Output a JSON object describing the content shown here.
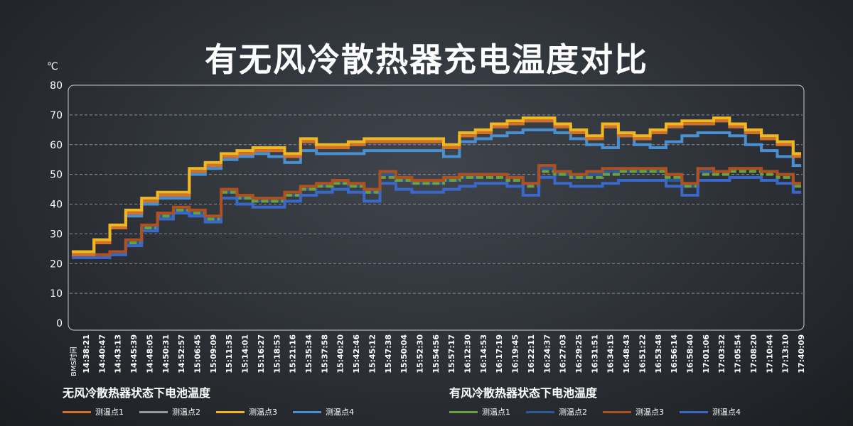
{
  "chart_data": {
    "type": "line",
    "title": "有无风冷散热器充电温度对比",
    "ylabel": "℃",
    "xlabel": "BMS时间",
    "ylim": [
      0,
      80
    ],
    "yticks": [
      0,
      10,
      20,
      30,
      40,
      50,
      60,
      70,
      80
    ],
    "grid": true,
    "step": true,
    "legend_placement": "bottom",
    "categories": [
      "14:38:21",
      "14:40:47",
      "14:43:13",
      "14:45:39",
      "14:48:05",
      "14:50:31",
      "14:52:57",
      "15:06:45",
      "15:09:09",
      "15:11:35",
      "15:14:01",
      "15:16:27",
      "15:18:53",
      "15:21:16",
      "15:35:34",
      "15:37:58",
      "15:40:20",
      "15:42:46",
      "15:45:12",
      "15:47:38",
      "15:50:04",
      "15:52:30",
      "15:54:56",
      "15:57:17",
      "16:12:30",
      "16:14:53",
      "16:17:19",
      "16:19:45",
      "16:22:11",
      "16:24:37",
      "16:27:03",
      "16:29:25",
      "16:31:51",
      "16:34:15",
      "16:48:43",
      "16:51:22",
      "16:53:48",
      "16:56:14",
      "16:58:40",
      "17:01:06",
      "17:03:32",
      "17:05:54",
      "17:08:20",
      "17:10:44",
      "17:13:10",
      "17:40:09"
    ],
    "groups": [
      {
        "name": "无风冷散热器状态下电池温度",
        "series": [
          {
            "name": "测温点1",
            "color": "#d4702a",
            "dashed": false,
            "values": [
              23,
              27,
              32,
              37,
              41,
              43,
              43,
              51,
              53,
              56,
              57,
              58,
              58,
              56,
              61,
              59,
              59,
              60,
              61,
              61,
              61,
              61,
              61,
              59,
              63,
              64,
              66,
              67,
              68,
              68,
              66,
              64,
              62,
              66,
              63,
              62,
              64,
              66,
              67,
              67,
              68,
              66,
              64,
              62,
              60,
              56
            ]
          },
          {
            "name": "测温点2",
            "color": "#9a9a9a",
            "dashed": false,
            "values": [
              24,
              28,
              32,
              37,
              41,
              43,
              43,
              51,
              53,
              56,
              57,
              58,
              58,
              56,
              61,
              59,
              59,
              60,
              61,
              61,
              61,
              61,
              61,
              59,
              63,
              64,
              66,
              67,
              68,
              68,
              66,
              64,
              62,
              66,
              63,
              62,
              64,
              66,
              67,
              67,
              68,
              66,
              64,
              62,
              60,
              57
            ]
          },
          {
            "name": "测温点3",
            "color": "#f0b820",
            "dashed": false,
            "values": [
              24,
              28,
              33,
              38,
              42,
              44,
              44,
              52,
              54,
              57,
              58,
              59,
              59,
              57,
              62,
              60,
              60,
              61,
              62,
              62,
              62,
              62,
              62,
              60,
              64,
              65,
              67,
              68,
              69,
              69,
              67,
              65,
              63,
              67,
              64,
              63,
              65,
              67,
              68,
              68,
              69,
              67,
              65,
              63,
              61,
              57
            ]
          },
          {
            "name": "测温点4",
            "color": "#4a90d0",
            "dashed": false,
            "values": [
              24,
              27,
              32,
              36,
              40,
              42,
              42,
              50,
              52,
              55,
              56,
              57,
              56,
              54,
              58,
              57,
              57,
              57,
              58,
              58,
              58,
              58,
              58,
              56,
              61,
              62,
              63,
              64,
              65,
              65,
              64,
              62,
              60,
              59,
              63,
              60,
              59,
              61,
              63,
              64,
              64,
              63,
              60,
              58,
              56,
              53
            ]
          }
        ]
      },
      {
        "name": "有风冷散热器状态下电池温度",
        "series": [
          {
            "name": "测温点1",
            "color": "#6aa040",
            "dashed": true,
            "values": [
              23,
              23,
              24,
              27,
              32,
              36,
              38,
              37,
              35,
              44,
              42,
              41,
              41,
              43,
              45,
              46,
              47,
              46,
              44,
              49,
              48,
              47,
              47,
              48,
              49,
              49,
              49,
              48,
              46,
              51,
              50,
              49,
              49,
              50,
              51,
              51,
              51,
              49,
              46,
              50,
              50,
              51,
              51,
              50,
              49,
              46
            ]
          },
          {
            "name": "测温点2",
            "color": "#2a5a9a",
            "dashed": false,
            "values": [
              22,
              22,
              23,
              27,
              32,
              36,
              38,
              37,
              35,
              44,
              42,
              41,
              41,
              43,
              45,
              46,
              47,
              46,
              44,
              50,
              48,
              47,
              47,
              48,
              49,
              50,
              50,
              49,
              47,
              52,
              50,
              49,
              50,
              51,
              51,
              51,
              51,
              48,
              46,
              51,
              51,
              52,
              52,
              51,
              50,
              47
            ]
          },
          {
            "name": "测温点3",
            "color": "#b05020",
            "dashed": false,
            "values": [
              23,
              23,
              24,
              28,
              33,
              37,
              39,
              38,
              36,
              45,
              43,
              42,
              42,
              44,
              46,
              47,
              48,
              47,
              45,
              51,
              49,
              48,
              48,
              49,
              50,
              50,
              50,
              49,
              47,
              53,
              51,
              50,
              51,
              52,
              52,
              52,
              52,
              50,
              47,
              52,
              51,
              52,
              52,
              51,
              50,
              47
            ]
          },
          {
            "name": "测温点4",
            "color": "#3a68c8",
            "dashed": false,
            "values": [
              22,
              22,
              23,
              26,
              31,
              35,
              37,
              36,
              34,
              42,
              40,
              39,
              39,
              41,
              43,
              44,
              45,
              44,
              41,
              47,
              45,
              44,
              44,
              45,
              46,
              47,
              47,
              46,
              43,
              49,
              47,
              46,
              46,
              47,
              48,
              48,
              48,
              46,
              43,
              48,
              48,
              49,
              49,
              48,
              47,
              44
            ]
          }
        ]
      }
    ]
  }
}
